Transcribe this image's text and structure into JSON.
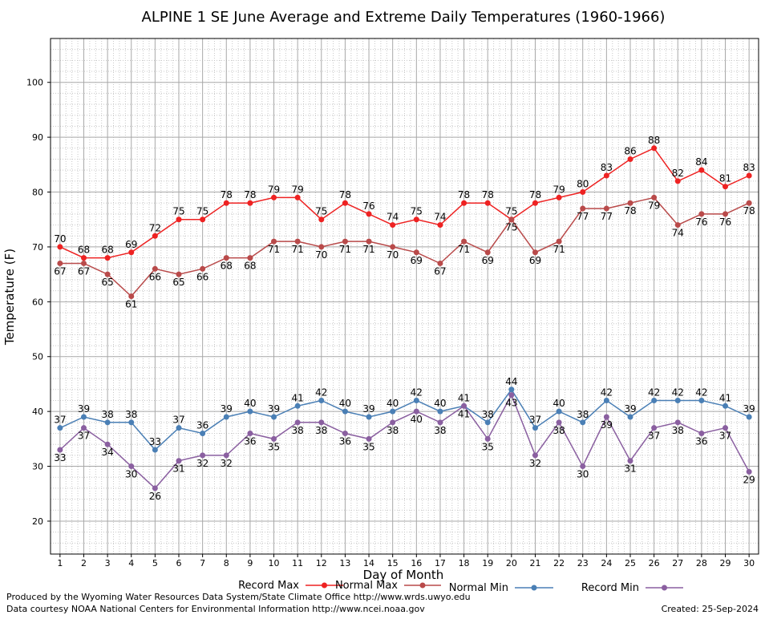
{
  "chart_data": {
    "type": "line",
    "title": "ALPINE 1 SE June Average and Extreme Daily Temperatures (1960-1966)",
    "xlabel": "Day of Month",
    "ylabel": "Temperature (F)",
    "x": [
      1,
      2,
      3,
      4,
      5,
      6,
      7,
      8,
      9,
      10,
      11,
      12,
      13,
      14,
      15,
      16,
      17,
      18,
      19,
      20,
      21,
      22,
      23,
      24,
      25,
      26,
      27,
      28,
      29,
      30
    ],
    "xlim": [
      0.6,
      30.4
    ],
    "ylim": [
      14,
      108
    ],
    "yticks": [
      20,
      30,
      40,
      50,
      60,
      70,
      80,
      90,
      100
    ],
    "grid": true,
    "legend_position": "bottom",
    "series": [
      {
        "name": "Record Max",
        "color": "#ee2222",
        "values": [
          70,
          68,
          68,
          69,
          72,
          75,
          75,
          78,
          78,
          79,
          79,
          75,
          78,
          76,
          74,
          75,
          74,
          78,
          78,
          75,
          78,
          79,
          80,
          83,
          86,
          88,
          82,
          84,
          81,
          83
        ]
      },
      {
        "name": "Normal Max",
        "color": "#b94a4a",
        "values": [
          67,
          67,
          65,
          61,
          66,
          65,
          66,
          68,
          68,
          71,
          71,
          70,
          71,
          71,
          70,
          69,
          67,
          71,
          69,
          75,
          69,
          71,
          77,
          77,
          78,
          79,
          74,
          76,
          76,
          78
        ]
      },
      {
        "name": "Normal Min",
        "color": "#4a7fb5",
        "values": [
          37,
          39,
          38,
          38,
          33,
          37,
          36,
          39,
          40,
          39,
          41,
          42,
          40,
          39,
          40,
          42,
          40,
          41,
          38,
          44,
          37,
          40,
          38,
          42,
          39,
          42,
          42,
          42,
          41,
          39
        ]
      },
      {
        "name": "Record Min",
        "color": "#8a5fa0",
        "values": [
          33,
          37,
          34,
          30,
          26,
          31,
          32,
          32,
          36,
          35,
          38,
          38,
          36,
          35,
          38,
          40,
          38,
          41,
          35,
          43,
          32,
          38,
          30,
          39,
          31,
          37,
          38,
          36,
          37,
          29
        ]
      }
    ]
  },
  "footer": {
    "produced_by": "Produced by the Wyoming Water Resources Data System/State Climate Office http://www.wrds.uwyo.edu",
    "data_courtesy": "Data courtesy NOAA National Centers for Environmental Information http://www.ncei.noaa.gov",
    "created": "Created:  25-Sep-2024"
  }
}
